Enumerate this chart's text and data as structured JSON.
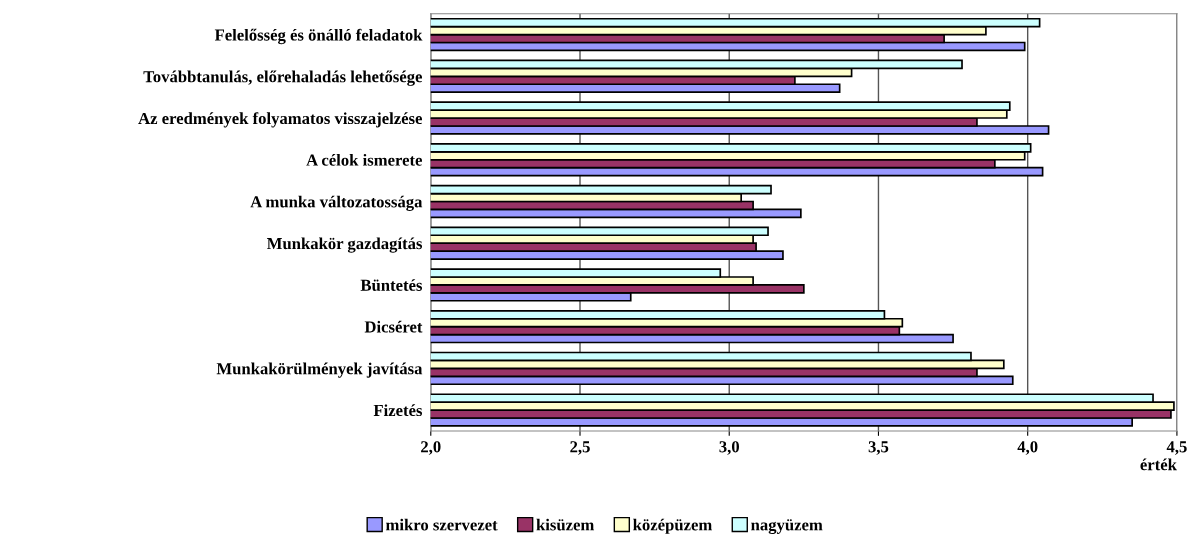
{
  "chart_data": {
    "type": "bar",
    "orientation": "horizontal",
    "xlabel": "érték",
    "categories": [
      "Felelősség és önálló feladatok",
      "Továbbtanulás, előrehaladás lehetősége",
      "Az eredmények folyamatos visszajelzése",
      "A célok ismerete",
      "A munka változatossága",
      "Munkakör gazdagítás",
      "Büntetés",
      "Dicséret",
      "Munkakörülmények javítása",
      "Fizetés"
    ],
    "series": [
      {
        "name": "mikro szervezet",
        "color": "#9999ff",
        "values": [
          3.99,
          3.37,
          4.07,
          4.05,
          3.24,
          3.18,
          2.67,
          3.75,
          3.95,
          4.35
        ]
      },
      {
        "name": "kisüzem",
        "color": "#993366",
        "values": [
          3.72,
          3.22,
          3.83,
          3.89,
          3.08,
          3.09,
          3.25,
          3.57,
          3.83,
          4.48
        ]
      },
      {
        "name": "középüzem",
        "color": "#ffffcc",
        "values": [
          3.86,
          3.41,
          3.93,
          3.99,
          3.04,
          3.08,
          3.08,
          3.58,
          3.92,
          4.49
        ]
      },
      {
        "name": "nagyüzem",
        "color": "#ccffff",
        "values": [
          4.04,
          3.78,
          3.94,
          4.01,
          3.14,
          3.13,
          2.97,
          3.52,
          3.81,
          4.42
        ]
      }
    ],
    "xlim": [
      2.0,
      4.5
    ],
    "xticks": [
      {
        "value": 2.0,
        "label": "2,0"
      },
      {
        "value": 2.5,
        "label": "2,5"
      },
      {
        "value": 3.0,
        "label": "3,0"
      },
      {
        "value": 3.5,
        "label": "3,5"
      },
      {
        "value": 4.0,
        "label": "4,0"
      },
      {
        "value": 4.5,
        "label": "4,5"
      }
    ],
    "grid": "x",
    "legend": "bottom"
  }
}
